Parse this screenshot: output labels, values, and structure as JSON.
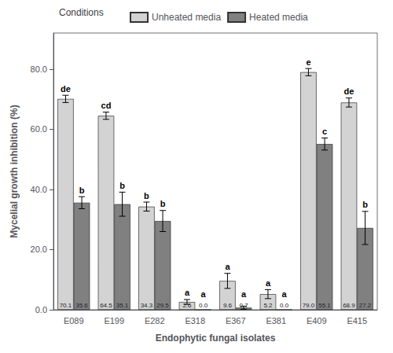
{
  "chart_data": {
    "type": "bar",
    "xlabel": "Endophytic fungal isolates",
    "ylabel": "Mycelial growth inhibition (%)",
    "legend_title": "Conditions",
    "legend": "top",
    "grid": false,
    "data_labels": true,
    "categories": [
      "E089",
      "E199",
      "E282",
      "E318",
      "E367",
      "E381",
      "E409",
      "E415"
    ],
    "series": [
      {
        "name": "Unheated media",
        "color": "#d3d3d3",
        "values": [
          70.1,
          64.5,
          34.3,
          2.6,
          9.6,
          5.2,
          79.0,
          68.9
        ],
        "value_labels": [
          "70.1",
          "64.5",
          "34.3",
          "2.6",
          "9.6",
          "5.2",
          "79.0",
          "68.9"
        ],
        "errors": [
          1.2,
          1.2,
          1.5,
          0.8,
          2.5,
          1.5,
          1.2,
          1.5
        ],
        "annotations": [
          "de",
          "cd",
          "b",
          "a",
          "a",
          "a",
          "e",
          "de"
        ]
      },
      {
        "name": "Heated media",
        "color": "#808080",
        "values": [
          35.6,
          35.1,
          29.5,
          0.0,
          0.7,
          0.0,
          55.1,
          27.2
        ],
        "value_labels": [
          "35.6",
          "35.1",
          "29.5",
          "0.0",
          "0.7",
          "0.0",
          "55.1",
          "27.2"
        ],
        "errors": [
          2.0,
          4.0,
          3.5,
          0.0,
          0.5,
          0.0,
          2.0,
          5.5
        ],
        "annotations": [
          "b",
          "b",
          "b",
          "a",
          "a",
          "a",
          "c",
          "b"
        ]
      }
    ],
    "ylim": [
      0,
      92
    ],
    "yticks": [
      {
        "value": 0,
        "label": "0.0"
      },
      {
        "value": 20,
        "label": "20.0"
      },
      {
        "value": 40,
        "label": "40.0"
      },
      {
        "value": 60,
        "label": "60.0"
      },
      {
        "value": 80,
        "label": "80.0"
      }
    ]
  }
}
